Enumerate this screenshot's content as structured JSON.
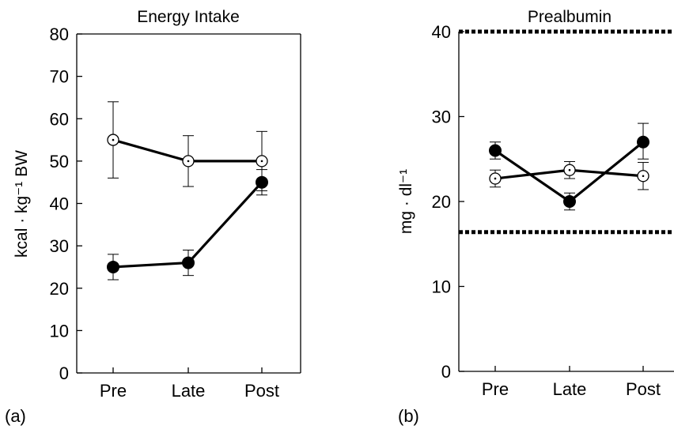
{
  "chart_data": [
    {
      "type": "line",
      "panel_label": "(a)",
      "title": "Energy Intake",
      "xlabel": "",
      "ylabel": "kcal · kg⁻¹ BW",
      "ylim": [
        0,
        80
      ],
      "yticks": [
        "0",
        "10",
        "20",
        "30",
        "40",
        "50",
        "60",
        "70",
        "80"
      ],
      "categories": [
        "Pre",
        "Late",
        "Post"
      ],
      "grid": false,
      "series": [
        {
          "marker": "open-circle",
          "values": [
            55,
            50,
            50
          ],
          "err_low": [
            46,
            44,
            43
          ],
          "err_high": [
            64,
            56,
            57
          ]
        },
        {
          "marker": "filled-circle",
          "values": [
            25,
            26,
            45
          ],
          "err_low": [
            22,
            23,
            42
          ],
          "err_high": [
            28,
            29,
            48
          ]
        }
      ],
      "reference_lines": []
    },
    {
      "type": "line",
      "panel_label": "(b)",
      "title": "Prealbumin",
      "xlabel": "",
      "ylabel": "mg · dl⁻¹",
      "ylim": [
        0,
        40
      ],
      "yticks": [
        "0",
        "10",
        "20",
        "30",
        "40"
      ],
      "categories": [
        "Pre",
        "Late",
        "Post"
      ],
      "grid": false,
      "series": [
        {
          "marker": "open-circle",
          "values": [
            22.7,
            23.7,
            23.0
          ],
          "err_low": [
            21.7,
            22.7,
            21.4
          ],
          "err_high": [
            23.7,
            24.7,
            24.6
          ]
        },
        {
          "marker": "filled-circle",
          "values": [
            26,
            20,
            27
          ],
          "err_low": [
            25,
            19,
            25
          ],
          "err_high": [
            27,
            21,
            29.2
          ]
        }
      ],
      "reference_lines": [
        {
          "style": "dotted",
          "value": 40
        },
        {
          "style": "dotted",
          "value": 16.4
        }
      ]
    }
  ]
}
